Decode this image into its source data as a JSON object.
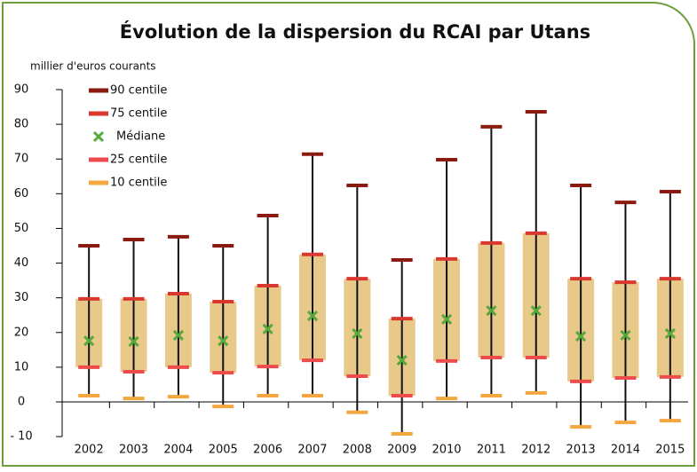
{
  "chart_data": {
    "type": "percentile-box",
    "title": "Évolution de la dispersion du RCAI par Utans",
    "y_label": "millier d'euros courants",
    "categories": [
      "2002",
      "2003",
      "2004",
      "2005",
      "2006",
      "2007",
      "2008",
      "2009",
      "2010",
      "2011",
      "2012",
      "2013",
      "2014",
      "2015"
    ],
    "series": [
      {
        "name": "90 centile",
        "color": "#8b1a10",
        "values": [
          45.0,
          46.8,
          47.6,
          45.0,
          53.7,
          71.4,
          62.4,
          40.9,
          69.8,
          79.3,
          83.6,
          62.4,
          57.5,
          60.6
        ]
      },
      {
        "name": "75 centile",
        "color": "#d9382f",
        "values": [
          29.7,
          29.7,
          31.2,
          28.9,
          33.5,
          42.5,
          35.5,
          24.0,
          41.2,
          45.8,
          48.6,
          35.5,
          34.5,
          35.5
        ]
      },
      {
        "name": "Médiane",
        "color": "#55a83a",
        "values": [
          17.6,
          17.4,
          19.2,
          17.6,
          21.0,
          24.8,
          19.7,
          12.0,
          23.8,
          26.3,
          26.3,
          18.9,
          19.2,
          19.7
        ]
      },
      {
        "name": "25 centile",
        "color": "#ee4c4c",
        "values": [
          10.0,
          8.7,
          10.0,
          8.4,
          10.2,
          12.0,
          7.4,
          1.8,
          11.8,
          12.8,
          12.8,
          5.9,
          6.9,
          7.2
        ]
      },
      {
        "name": "10 centile",
        "color": "#f4a640",
        "values": [
          1.8,
          1.0,
          1.5,
          -1.3,
          1.8,
          1.8,
          -3.0,
          -9.2,
          1.0,
          1.8,
          2.6,
          -7.2,
          -5.9,
          -5.4
        ]
      }
    ],
    "box_color": "#e8c98a",
    "ylim": [
      -12,
      92
    ],
    "yticks": [
      {
        "value": -10,
        "label": "- 10"
      },
      0,
      10,
      20,
      30,
      40,
      50,
      60,
      70,
      80,
      90
    ]
  }
}
